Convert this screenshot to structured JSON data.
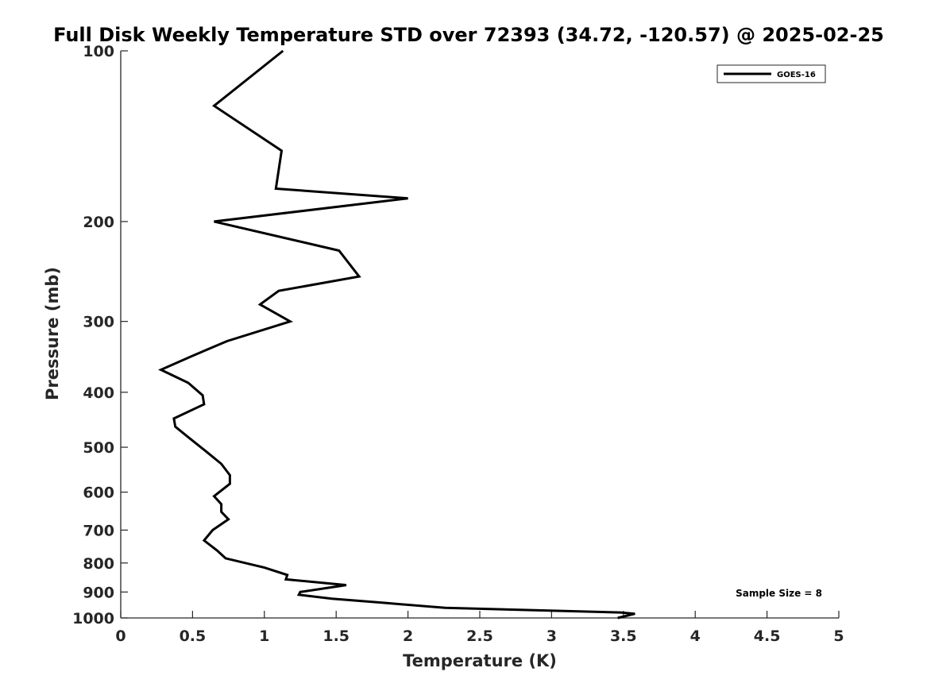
{
  "chart_data": {
    "type": "line",
    "title": "Full Disk Weekly Temperature STD over 72393 (34.72, -120.57) @ 2025-02-25",
    "xlabel": "Temperature (K)",
    "ylabel": "Pressure (mb)",
    "xlim": [
      0,
      5
    ],
    "ylim": [
      100,
      1000
    ],
    "y_scale": "log",
    "y_reversed": true,
    "x_ticks": [
      "0",
      "0.5",
      "1",
      "1.5",
      "2",
      "2.5",
      "3",
      "3.5",
      "4",
      "4.5",
      "5"
    ],
    "y_ticks": [
      "100",
      "200",
      "300",
      "400",
      "500",
      "600",
      "700",
      "800",
      "900",
      "1000"
    ],
    "legend_position": "top-right",
    "grid": false,
    "annotation": "Sample Size = 8",
    "series": [
      {
        "name": "GOES-16",
        "color": "#000000",
        "points": [
          [
            1.13,
            100
          ],
          [
            0.65,
            125
          ],
          [
            1.12,
            150
          ],
          [
            1.08,
            175
          ],
          [
            2.0,
            182
          ],
          [
            0.65,
            200
          ],
          [
            1.52,
            225
          ],
          [
            1.66,
            250
          ],
          [
            1.1,
            265
          ],
          [
            0.97,
            280
          ],
          [
            1.18,
            300
          ],
          [
            0.74,
            325
          ],
          [
            0.5,
            345
          ],
          [
            0.28,
            365
          ],
          [
            0.47,
            385
          ],
          [
            0.57,
            405
          ],
          [
            0.58,
            420
          ],
          [
            0.37,
            445
          ],
          [
            0.38,
            460
          ],
          [
            0.47,
            480
          ],
          [
            0.6,
            510
          ],
          [
            0.7,
            535
          ],
          [
            0.76,
            560
          ],
          [
            0.76,
            580
          ],
          [
            0.65,
            610
          ],
          [
            0.7,
            630
          ],
          [
            0.7,
            650
          ],
          [
            0.75,
            670
          ],
          [
            0.64,
            700
          ],
          [
            0.58,
            730
          ],
          [
            0.67,
            760
          ],
          [
            0.73,
            785
          ],
          [
            1.0,
            815
          ],
          [
            1.16,
            840
          ],
          [
            1.15,
            855
          ],
          [
            1.57,
            875
          ],
          [
            1.25,
            900
          ],
          [
            1.24,
            910
          ],
          [
            1.47,
            925
          ],
          [
            1.82,
            940
          ],
          [
            2.26,
            960
          ],
          [
            3.48,
            978
          ],
          [
            3.58,
            983
          ],
          [
            3.46,
            1000
          ]
        ]
      }
    ]
  }
}
